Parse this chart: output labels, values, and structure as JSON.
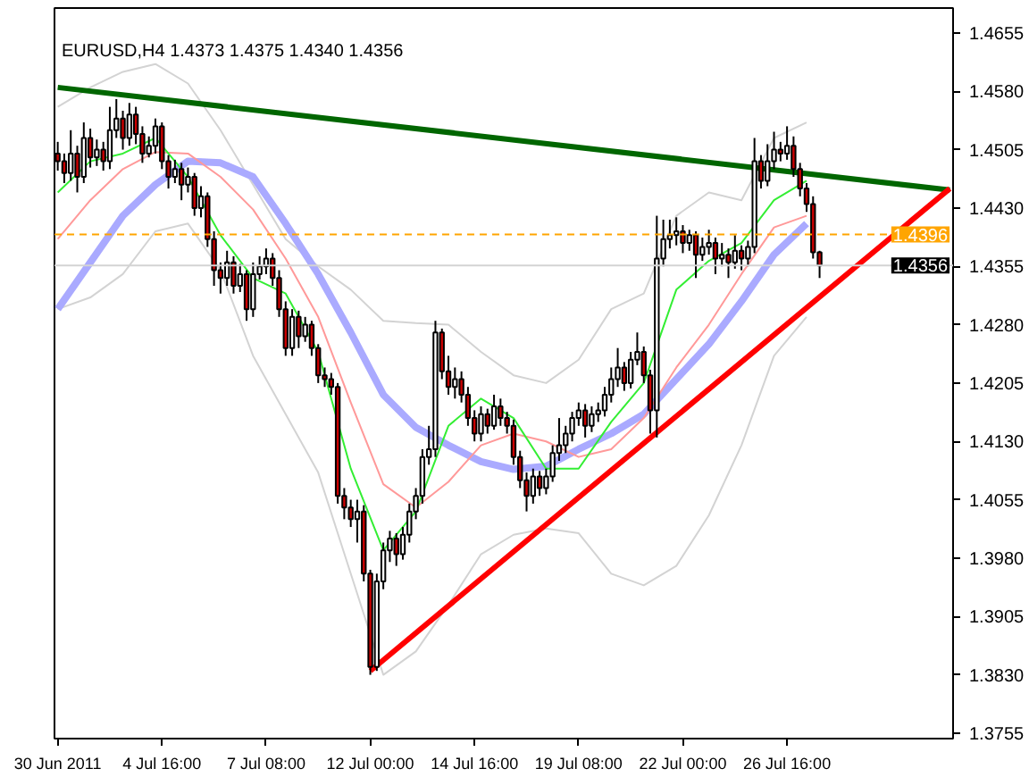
{
  "chart_data": {
    "type": "candlestick",
    "title": "EURUSD,H4  1.4373 1.4375 1.4340 1.4356",
    "categories": [
      "30 Jun 2011",
      null,
      null,
      null,
      null,
      null,
      null,
      null,
      null,
      null,
      null,
      null,
      null,
      null,
      null,
      null,
      "4 Jul 16:00",
      null,
      null,
      null,
      null,
      null,
      null,
      null,
      null,
      null,
      null,
      null,
      null,
      null,
      null,
      null,
      "7 Jul 08:00",
      null,
      null,
      null,
      null,
      null,
      null,
      null,
      null,
      null,
      null,
      null,
      null,
      null,
      null,
      null,
      "12 Jul 00:00",
      null,
      null,
      null,
      null,
      null,
      null,
      null,
      null,
      null,
      null,
      null,
      null,
      null,
      null,
      null,
      "14 Jul 16:00",
      null,
      null,
      null,
      null,
      null,
      null,
      null,
      null,
      null,
      null,
      null,
      null,
      null,
      null,
      null,
      "19 Jul 08:00",
      null,
      null,
      null,
      null,
      null,
      null,
      null,
      null,
      null,
      null,
      null,
      null,
      null,
      null,
      null,
      "22 Jul 00:00",
      null,
      null,
      null,
      null,
      null,
      null,
      null,
      null,
      null,
      null,
      null,
      null,
      null,
      null,
      null,
      "26 Jul 16:00",
      null,
      null,
      null,
      null,
      null,
      null,
      null,
      null,
      null,
      null,
      null,
      null,
      null,
      null,
      null,
      null,
      null,
      null,
      null,
      null,
      null,
      null,
      null,
      null,
      null
    ],
    "ohlc": [
      [
        1.45,
        1.4515,
        1.4478,
        1.449
      ],
      [
        1.449,
        1.45,
        1.4462,
        1.4475
      ],
      [
        1.4475,
        1.453,
        1.4465,
        1.45
      ],
      [
        1.45,
        1.451,
        1.445,
        1.447
      ],
      [
        1.447,
        1.454,
        1.4462,
        1.452
      ],
      [
        1.452,
        1.4532,
        1.4482,
        1.4495
      ],
      [
        1.4495,
        1.4518,
        1.4484,
        1.4505
      ],
      [
        1.4505,
        1.4515,
        1.4478,
        1.449
      ],
      [
        1.449,
        1.456,
        1.448,
        1.453
      ],
      [
        1.453,
        1.457,
        1.452,
        1.4545
      ],
      [
        1.4545,
        1.4555,
        1.4505,
        1.452
      ],
      [
        1.452,
        1.4565,
        1.451,
        1.455
      ],
      [
        1.455,
        1.456,
        1.4512,
        1.4525
      ],
      [
        1.4525,
        1.4535,
        1.4488,
        1.45
      ],
      [
        1.45,
        1.4522,
        1.4495,
        1.451
      ],
      [
        1.451,
        1.4545,
        1.45,
        1.4535
      ],
      [
        1.4535,
        1.454,
        1.448,
        1.449
      ],
      [
        1.449,
        1.4498,
        1.4455,
        1.447
      ],
      [
        1.447,
        1.4492,
        1.4462,
        1.448
      ],
      [
        1.448,
        1.4488,
        1.444,
        1.446
      ],
      [
        1.446,
        1.4482,
        1.445,
        1.447
      ],
      [
        1.447,
        1.4475,
        1.442,
        1.443
      ],
      [
        1.443,
        1.4458,
        1.4418,
        1.4445
      ],
      [
        1.4445,
        1.445,
        1.438,
        1.439
      ],
      [
        1.439,
        1.44,
        1.433,
        1.435
      ],
      [
        1.435,
        1.436,
        1.432,
        1.434
      ],
      [
        1.434,
        1.4375,
        1.433,
        1.436
      ],
      [
        1.436,
        1.4368,
        1.432,
        1.433
      ],
      [
        1.433,
        1.4358,
        1.4322,
        1.4345
      ],
      [
        1.4345,
        1.435,
        1.4285,
        1.43
      ],
      [
        1.43,
        1.436,
        1.429,
        1.4345
      ],
      [
        1.4345,
        1.4368,
        1.4338,
        1.4355
      ],
      [
        1.4355,
        1.4378,
        1.4345,
        1.4365
      ],
      [
        1.4365,
        1.4372,
        1.433,
        1.434
      ],
      [
        1.434,
        1.435,
        1.429,
        1.43
      ],
      [
        1.43,
        1.431,
        1.424,
        1.425
      ],
      [
        1.425,
        1.43,
        1.424,
        1.429
      ],
      [
        1.429,
        1.4298,
        1.425,
        1.4265
      ],
      [
        1.4265,
        1.429,
        1.4258,
        1.428
      ],
      [
        1.428,
        1.4285,
        1.424,
        1.425
      ],
      [
        1.425,
        1.4255,
        1.4205,
        1.4215
      ],
      [
        1.4215,
        1.4225,
        1.42,
        1.421
      ],
      [
        1.421,
        1.4218,
        1.419,
        1.42
      ],
      [
        1.42,
        1.4205,
        1.405,
        1.406
      ],
      [
        1.406,
        1.407,
        1.403,
        1.4045
      ],
      [
        1.4045,
        1.4055,
        1.402,
        1.403
      ],
      [
        1.403,
        1.4055,
        1.4,
        1.404
      ],
      [
        1.404,
        1.4048,
        1.395,
        1.396
      ],
      [
        1.396,
        1.3965,
        1.383,
        1.384
      ],
      [
        1.384,
        1.396,
        1.3835,
        1.395
      ],
      [
        1.395,
        1.4,
        1.394,
        1.399
      ],
      [
        1.399,
        1.4015,
        1.3975,
        1.4005
      ],
      [
        1.4005,
        1.4012,
        1.397,
        1.3985
      ],
      [
        1.3985,
        1.402,
        1.3978,
        1.401
      ],
      [
        1.401,
        1.405,
        1.4,
        1.404
      ],
      [
        1.404,
        1.407,
        1.403,
        1.406
      ],
      [
        1.406,
        1.412,
        1.405,
        1.411
      ],
      [
        1.411,
        1.415,
        1.41,
        1.412
      ],
      [
        1.412,
        1.4285,
        1.411,
        1.427
      ],
      [
        1.427,
        1.4275,
        1.421,
        1.422
      ],
      [
        1.422,
        1.424,
        1.419,
        1.42
      ],
      [
        1.42,
        1.4225,
        1.4185,
        1.421
      ],
      [
        1.421,
        1.422,
        1.418,
        1.419
      ],
      [
        1.419,
        1.42,
        1.415,
        1.416
      ],
      [
        1.416,
        1.417,
        1.413,
        1.414
      ],
      [
        1.414,
        1.4175,
        1.413,
        1.4165
      ],
      [
        1.4165,
        1.4172,
        1.414,
        1.415
      ],
      [
        1.415,
        1.419,
        1.4145,
        1.4175
      ],
      [
        1.4175,
        1.4185,
        1.415,
        1.416
      ],
      [
        1.416,
        1.4168,
        1.414,
        1.415
      ],
      [
        1.415,
        1.4158,
        1.41,
        1.411
      ],
      [
        1.411,
        1.4118,
        1.407,
        1.408
      ],
      [
        1.408,
        1.409,
        1.404,
        1.406
      ],
      [
        1.406,
        1.4095,
        1.405,
        1.4085
      ],
      [
        1.4085,
        1.4092,
        1.406,
        1.407
      ],
      [
        1.407,
        1.4095,
        1.4062,
        1.4085
      ],
      [
        1.4085,
        1.4125,
        1.4078,
        1.4115
      ],
      [
        1.4115,
        1.416,
        1.4105,
        1.4125
      ],
      [
        1.4125,
        1.415,
        1.4115,
        1.414
      ],
      [
        1.414,
        1.4168,
        1.413,
        1.416
      ],
      [
        1.416,
        1.418,
        1.415,
        1.417
      ],
      [
        1.417,
        1.4178,
        1.4135,
        1.415
      ],
      [
        1.415,
        1.4175,
        1.4142,
        1.4165
      ],
      [
        1.4165,
        1.418,
        1.4155,
        1.417
      ],
      [
        1.417,
        1.42,
        1.4162,
        1.419
      ],
      [
        1.419,
        1.4225,
        1.418,
        1.421
      ],
      [
        1.421,
        1.425,
        1.42,
        1.4225
      ],
      [
        1.4225,
        1.4232,
        1.4195,
        1.4205
      ],
      [
        1.4205,
        1.4245,
        1.4198,
        1.4235
      ],
      [
        1.4235,
        1.427,
        1.4228,
        1.4245
      ],
      [
        1.4245,
        1.4252,
        1.4205,
        1.4215
      ],
      [
        1.4215,
        1.4222,
        1.414,
        1.417
      ],
      [
        1.417,
        1.442,
        1.4135,
        1.4365
      ],
      [
        1.4365,
        1.4415,
        1.4355,
        1.439
      ],
      [
        1.439,
        1.4415,
        1.4378,
        1.4395
      ],
      [
        1.4395,
        1.4418,
        1.4382,
        1.44
      ],
      [
        1.44,
        1.4408,
        1.4372,
        1.4385
      ],
      [
        1.4385,
        1.4402,
        1.4375,
        1.4395
      ],
      [
        1.4395,
        1.44,
        1.434,
        1.437
      ],
      [
        1.437,
        1.4392,
        1.4362,
        1.438
      ],
      [
        1.438,
        1.4402,
        1.437,
        1.4385
      ],
      [
        1.4385,
        1.4392,
        1.4345,
        1.4365
      ],
      [
        1.4365,
        1.4385,
        1.4355,
        1.437
      ],
      [
        1.437,
        1.4378,
        1.434,
        1.436
      ],
      [
        1.436,
        1.4395,
        1.4352,
        1.4375
      ],
      [
        1.4375,
        1.4382,
        1.435,
        1.4365
      ],
      [
        1.4365,
        1.4388,
        1.4355,
        1.438
      ],
      [
        1.438,
        1.452,
        1.4372,
        1.449
      ],
      [
        1.449,
        1.4498,
        1.4455,
        1.4465
      ],
      [
        1.4465,
        1.4512,
        1.4458,
        1.449
      ],
      [
        1.449,
        1.4528,
        1.448,
        1.4505
      ],
      [
        1.4505,
        1.4515,
        1.449,
        1.45
      ],
      [
        1.45,
        1.4535,
        1.4492,
        1.451
      ],
      [
        1.451,
        1.4522,
        1.447,
        1.448
      ],
      [
        1.448,
        1.4488,
        1.4445,
        1.4455
      ],
      [
        1.4455,
        1.4462,
        1.4425,
        1.4435
      ],
      [
        1.4435,
        1.4445,
        1.4365,
        1.4373
      ],
      [
        1.4373,
        1.4375,
        1.434,
        1.4356
      ],
      null,
      null,
      null,
      null,
      null,
      null,
      null,
      null,
      null,
      null,
      null,
      null,
      null,
      null,
      null,
      null,
      null,
      null,
      null,
      null
    ],
    "series": [
      {
        "type": "line",
        "color": "#d3d3d3",
        "values": [
          1.456,
          null,
          null,
          null,
          null,
          1.4585,
          null,
          null,
          null,
          null,
          1.4605,
          null,
          null,
          null,
          null,
          1.4615,
          null,
          null,
          null,
          null,
          1.459,
          null,
          null,
          null,
          null,
          1.453,
          null,
          null,
          null,
          null,
          1.446,
          null,
          null,
          null,
          null,
          1.439,
          null,
          null,
          null,
          null,
          1.4355,
          null,
          null,
          null,
          null,
          1.4325,
          null,
          null,
          null,
          null,
          1.4285,
          null,
          null,
          null,
          null,
          1.4282,
          null,
          null,
          null,
          null,
          1.428,
          null,
          null,
          null,
          null,
          1.4245,
          null,
          null,
          null,
          null,
          1.4215,
          null,
          null,
          null,
          null,
          1.4205,
          null,
          null,
          null,
          null,
          1.4235,
          null,
          null,
          null,
          null,
          1.43,
          null,
          null,
          null,
          null,
          1.432,
          null,
          null,
          null,
          null,
          1.442,
          null,
          null,
          null,
          null,
          1.445,
          null,
          null,
          null,
          null,
          1.444,
          null,
          null,
          null,
          null,
          1.452,
          null,
          null,
          null,
          null,
          1.454,
          null,
          null,
          null,
          null,
          null,
          null,
          null,
          null,
          null,
          null,
          null,
          null,
          null,
          null,
          null,
          null,
          null,
          null,
          null,
          null,
          null,
          null
        ]
      },
      {
        "type": "line",
        "color": "#d3d3d3",
        "values": [
          1.43,
          null,
          null,
          null,
          null,
          1.4315,
          null,
          null,
          null,
          null,
          1.4345,
          null,
          null,
          null,
          null,
          1.44,
          null,
          null,
          null,
          null,
          1.441,
          null,
          null,
          null,
          null,
          1.435,
          null,
          null,
          null,
          null,
          1.424,
          null,
          null,
          null,
          null,
          1.4165,
          null,
          null,
          null,
          null,
          1.409,
          null,
          null,
          null,
          null,
          1.396,
          null,
          null,
          null,
          null,
          1.383,
          null,
          null,
          null,
          null,
          1.386,
          null,
          null,
          null,
          null,
          1.392,
          null,
          null,
          null,
          null,
          1.3985,
          null,
          null,
          null,
          null,
          1.401,
          null,
          null,
          null,
          null,
          1.4018,
          null,
          null,
          null,
          null,
          1.4012,
          null,
          null,
          null,
          null,
          1.396,
          null,
          null,
          null,
          null,
          1.3945,
          null,
          null,
          null,
          null,
          1.397,
          null,
          null,
          null,
          null,
          1.4035,
          null,
          null,
          null,
          null,
          1.4125,
          null,
          null,
          null,
          null,
          1.424,
          null,
          null,
          null,
          null,
          1.429,
          null,
          null,
          null,
          null,
          null,
          null,
          null,
          null,
          null,
          null,
          null,
          null,
          null,
          null,
          null,
          null,
          null,
          null,
          null,
          null,
          null,
          null
        ]
      },
      {
        "type": "line",
        "color": "#aaaaff",
        "values": [
          1.43,
          null,
          null,
          null,
          null,
          1.436,
          null,
          null,
          null,
          null,
          1.442,
          null,
          null,
          null,
          null,
          1.446,
          null,
          null,
          null,
          null,
          1.449,
          null,
          null,
          null,
          null,
          1.4488,
          null,
          null,
          null,
          null,
          1.447,
          null,
          null,
          null,
          null,
          1.441,
          null,
          null,
          null,
          null,
          1.4345,
          null,
          null,
          null,
          null,
          1.427,
          null,
          null,
          null,
          null,
          1.419,
          null,
          null,
          null,
          null,
          1.4148,
          null,
          null,
          null,
          null,
          1.4125,
          null,
          null,
          null,
          null,
          1.4104,
          null,
          null,
          null,
          null,
          1.4094,
          null,
          null,
          null,
          null,
          1.4098,
          null,
          null,
          null,
          null,
          1.412,
          null,
          null,
          null,
          null,
          1.414,
          null,
          null,
          null,
          null,
          1.4165,
          null,
          null,
          null,
          null,
          1.421,
          null,
          null,
          null,
          null,
          1.4255,
          null,
          null,
          null,
          null,
          1.431,
          null,
          null,
          null,
          null,
          1.437,
          null,
          null,
          null,
          null,
          1.441,
          null,
          null,
          null,
          null,
          null,
          null,
          null,
          null,
          null,
          null,
          null,
          null,
          null,
          null,
          null,
          null,
          null,
          null,
          null,
          null,
          null,
          null
        ]
      },
      {
        "type": "line",
        "color": "#ff9999",
        "values": [
          1.439,
          null,
          null,
          null,
          null,
          1.444,
          null,
          null,
          null,
          null,
          1.448,
          null,
          null,
          null,
          null,
          1.4502,
          null,
          null,
          null,
          null,
          1.45,
          null,
          null,
          null,
          null,
          1.447,
          null,
          null,
          null,
          null,
          1.4428,
          null,
          null,
          null,
          null,
          1.4365,
          null,
          null,
          null,
          null,
          1.429,
          null,
          null,
          null,
          null,
          1.418,
          null,
          null,
          null,
          null,
          1.4075,
          null,
          null,
          null,
          null,
          1.4045,
          null,
          null,
          null,
          null,
          1.4078,
          null,
          null,
          null,
          null,
          1.4125,
          null,
          null,
          null,
          null,
          1.414,
          null,
          null,
          null,
          null,
          1.413,
          null,
          null,
          null,
          null,
          1.411,
          null,
          null,
          null,
          null,
          1.412,
          null,
          null,
          null,
          null,
          1.416,
          null,
          null,
          null,
          null,
          1.4225,
          null,
          null,
          null,
          null,
          1.428,
          null,
          null,
          null,
          null,
          1.4345,
          null,
          null,
          null,
          null,
          1.4405,
          null,
          null,
          null,
          null,
          1.442,
          null,
          null,
          null,
          null,
          null,
          null,
          null,
          null,
          null,
          null,
          null,
          null,
          null,
          null,
          null,
          null,
          null,
          null,
          null,
          null,
          null,
          null
        ]
      },
      {
        "type": "line",
        "color": "#33ee33",
        "values": [
          1.445,
          null,
          null,
          null,
          null,
          1.449,
          null,
          null,
          null,
          null,
          1.45,
          null,
          null,
          null,
          null,
          1.452,
          null,
          null,
          null,
          null,
          1.447,
          null,
          null,
          null,
          null,
          1.4395,
          null,
          null,
          null,
          null,
          1.434,
          null,
          null,
          null,
          null,
          1.432,
          null,
          null,
          null,
          null,
          1.4245,
          null,
          null,
          null,
          null,
          1.4095,
          null,
          null,
          null,
          null,
          1.399,
          null,
          null,
          null,
          null,
          1.404,
          null,
          null,
          null,
          null,
          1.415,
          null,
          null,
          null,
          null,
          1.4185,
          null,
          null,
          null,
          null,
          1.416,
          null,
          null,
          null,
          null,
          1.4095,
          null,
          null,
          null,
          null,
          1.4095,
          null,
          null,
          null,
          null,
          1.4155,
          null,
          null,
          null,
          null,
          1.4205,
          null,
          null,
          null,
          null,
          1.4325,
          null,
          null,
          null,
          null,
          1.4362,
          null,
          null,
          null,
          null,
          1.4385,
          null,
          null,
          null,
          null,
          1.444,
          null,
          null,
          null,
          null,
          1.4465,
          null,
          null,
          null,
          null,
          null,
          null,
          null,
          null,
          null,
          null,
          null,
          null,
          null,
          null,
          null,
          null,
          null,
          null,
          null,
          null,
          null,
          null
        ]
      },
      {
        "type": "line",
        "color": "#006600",
        "values": [
          1.4585,
          null,
          null,
          null,
          null,
          null,
          null,
          null,
          null,
          null,
          null,
          null,
          null,
          null,
          null,
          null,
          null,
          null,
          null,
          null,
          null,
          null,
          null,
          null,
          null,
          null,
          null,
          null,
          null,
          null,
          null,
          null,
          null,
          null,
          null,
          null,
          null,
          null,
          null,
          null,
          null,
          null,
          null,
          null,
          null,
          null,
          null,
          null,
          null,
          null,
          null,
          null,
          null,
          null,
          null,
          null,
          null,
          null,
          null,
          null,
          null,
          null,
          null,
          null,
          null,
          null,
          null,
          null,
          null,
          null,
          null,
          null,
          null,
          null,
          null,
          null,
          null,
          null,
          null,
          null,
          null,
          null,
          null,
          null,
          null,
          null,
          null,
          null,
          null,
          null,
          null,
          null,
          null,
          null,
          null,
          null,
          null,
          null,
          null,
          null,
          null,
          null,
          null,
          null,
          null,
          null,
          null,
          null,
          null,
          null,
          null,
          null,
          null,
          null,
          null,
          null,
          null,
          null,
          null,
          null,
          null,
          null,
          null,
          null,
          null,
          null,
          null,
          null,
          null,
          null,
          null,
          null,
          null,
          null,
          null,
          null,
          null,
          1.4453
        ]
      },
      {
        "type": "line",
        "color": "#ff0000",
        "values": [
          null,
          null,
          null,
          null,
          null,
          null,
          null,
          null,
          null,
          null,
          null,
          null,
          null,
          null,
          null,
          null,
          null,
          null,
          null,
          null,
          null,
          null,
          null,
          null,
          null,
          null,
          null,
          null,
          null,
          null,
          null,
          null,
          null,
          null,
          null,
          null,
          null,
          null,
          null,
          null,
          null,
          null,
          null,
          null,
          null,
          null,
          null,
          null,
          1.3835,
          null,
          null,
          null,
          null,
          null,
          null,
          null,
          null,
          null,
          null,
          null,
          null,
          null,
          null,
          null,
          null,
          null,
          null,
          null,
          null,
          null,
          null,
          null,
          null,
          null,
          null,
          null,
          null,
          null,
          null,
          null,
          null,
          null,
          null,
          null,
          null,
          null,
          null,
          null,
          null,
          null,
          null,
          null,
          null,
          null,
          null,
          null,
          null,
          null,
          null,
          null,
          null,
          null,
          null,
          null,
          null,
          null,
          null,
          null,
          null,
          null,
          null,
          null,
          null,
          null,
          null,
          null,
          null,
          null,
          null,
          null,
          null,
          null,
          null,
          null,
          null,
          null,
          null,
          null,
          null,
          null,
          null,
          null,
          null,
          null,
          null,
          null,
          null,
          1.4455
        ]
      }
    ],
    "ref_lines": [
      {
        "axis": "y",
        "value": 1.4396,
        "label": "1.4396",
        "color": "#ffa500",
        "line_style": "dashed"
      },
      {
        "axis": "y",
        "value": 1.4356,
        "label": "1.4356",
        "color": "#d3d3d3",
        "line_style": "solid"
      }
    ],
    "ylim": [
      1.3748,
      1.4687
    ],
    "yticks": [
      {
        "value": 1.3755,
        "label": "1.3755"
      },
      {
        "value": 1.383,
        "label": "1.3830"
      },
      {
        "value": 1.3905,
        "label": "1.3905"
      },
      {
        "value": 1.398,
        "label": "1.3980"
      },
      {
        "value": 1.4055,
        "label": "1.4055"
      },
      {
        "value": 1.413,
        "label": "1.4130"
      },
      {
        "value": 1.4205,
        "label": "1.4205"
      },
      {
        "value": 1.428,
        "label": "1.4280"
      },
      {
        "value": 1.4355,
        "label": "1.4355"
      },
      {
        "value": 1.443,
        "label": "1.4430"
      },
      {
        "value": 1.4505,
        "label": "1.4505"
      },
      {
        "value": 1.458,
        "label": "1.4580"
      },
      {
        "value": 1.4655,
        "label": "1.4655"
      }
    ],
    "tick_labels": "xy"
  }
}
